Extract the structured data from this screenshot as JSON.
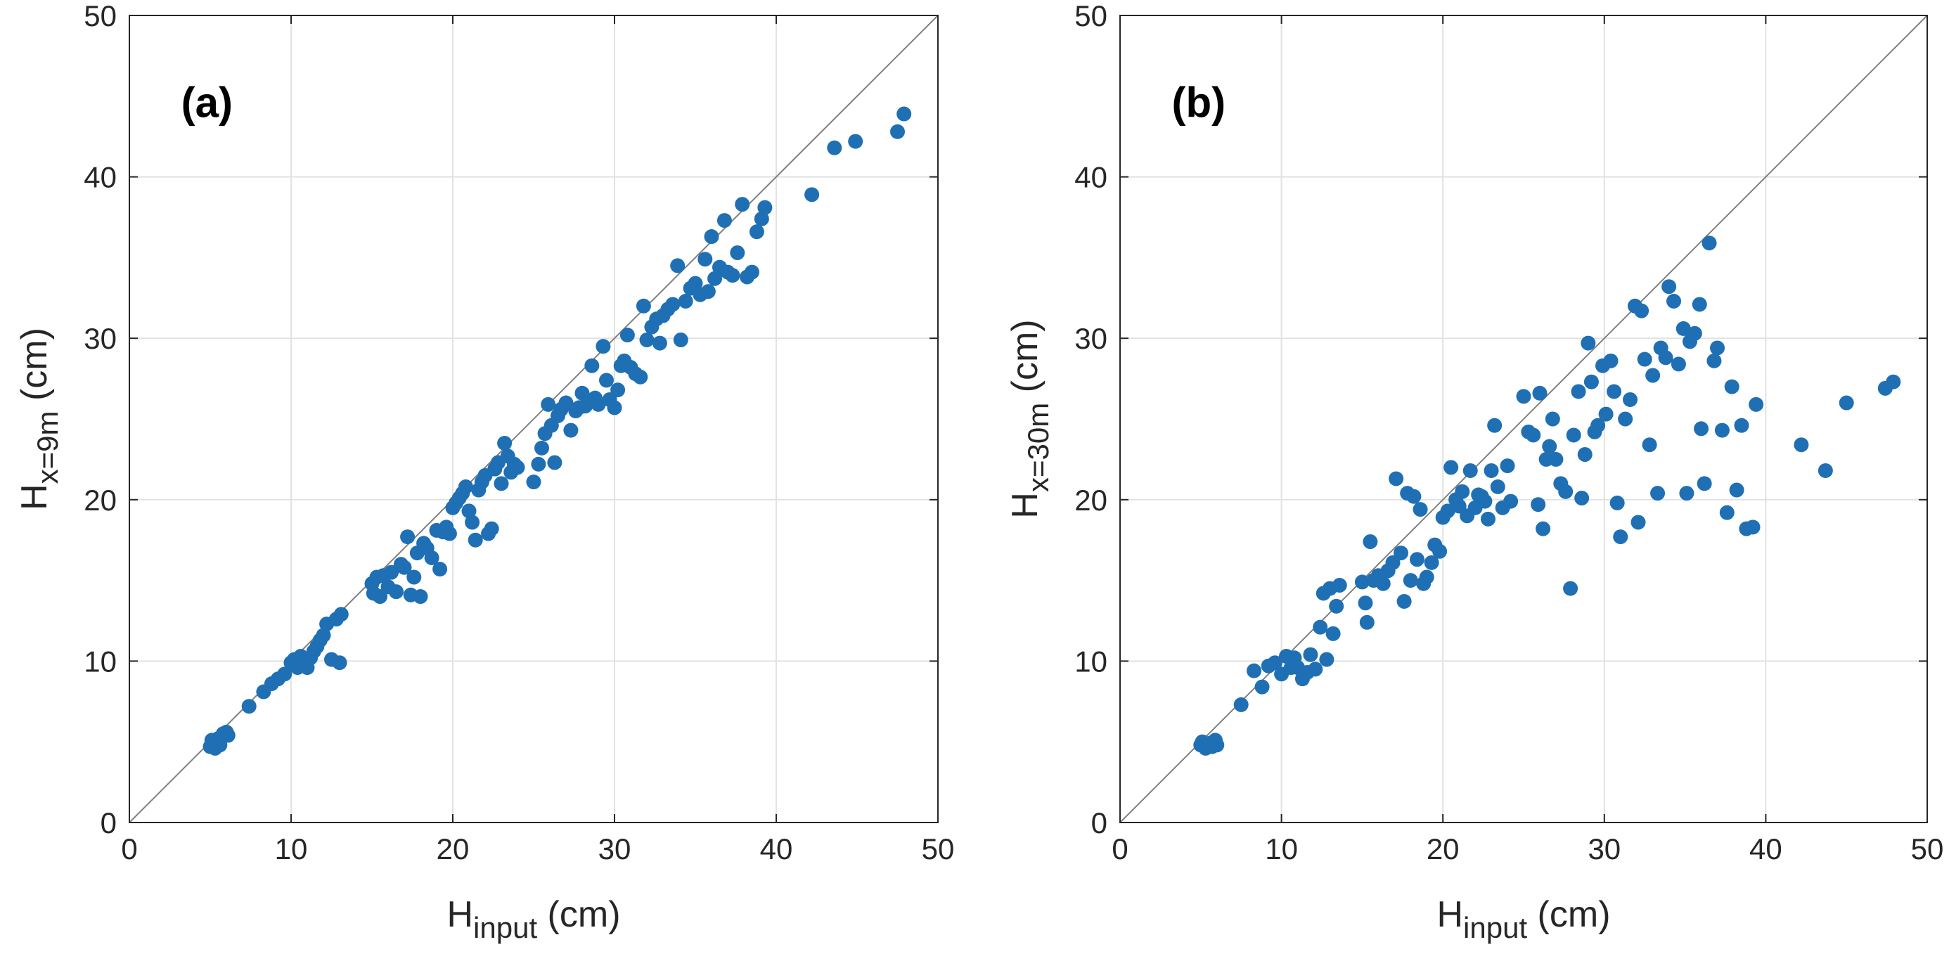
{
  "colors": {
    "marker": "#1f6fb4",
    "grid": "#e2e2e2",
    "axis": "#262626",
    "identity_line": "#808080"
  },
  "chart_data": [
    {
      "type": "scatter",
      "panel_label": "(a)",
      "xlabel": {
        "main": "H",
        "sub": "input",
        "unit": " (cm)"
      },
      "ylabel": {
        "main": "H",
        "sub": "x=9m",
        "unit": " (cm)"
      },
      "xlim": [
        0,
        50
      ],
      "ylim": [
        0,
        50
      ],
      "xticks": [
        "0",
        "10",
        "20",
        "30",
        "40",
        "50"
      ],
      "yticks": [
        "0",
        "10",
        "20",
        "30",
        "40",
        "50"
      ],
      "grid": true,
      "reference_line": "y = x",
      "points": [
        [
          5.0,
          4.7
        ],
        [
          5.1,
          5.1
        ],
        [
          5.2,
          4.9
        ],
        [
          5.3,
          4.6
        ],
        [
          5.4,
          5.0
        ],
        [
          5.5,
          5.2
        ],
        [
          5.6,
          4.8
        ],
        [
          5.7,
          5.3
        ],
        [
          5.8,
          5.5
        ],
        [
          6.0,
          5.6
        ],
        [
          6.1,
          5.4
        ],
        [
          7.4,
          7.2
        ],
        [
          8.3,
          8.1
        ],
        [
          8.8,
          8.6
        ],
        [
          9.2,
          8.9
        ],
        [
          9.6,
          9.2
        ],
        [
          10.0,
          9.9
        ],
        [
          10.2,
          10.1
        ],
        [
          10.4,
          9.6
        ],
        [
          10.6,
          10.3
        ],
        [
          10.8,
          9.8
        ],
        [
          11.0,
          9.6
        ],
        [
          11.2,
          10.2
        ],
        [
          11.4,
          10.6
        ],
        [
          11.6,
          10.9
        ],
        [
          11.8,
          11.3
        ],
        [
          12.0,
          11.6
        ],
        [
          12.2,
          12.3
        ],
        [
          12.5,
          10.1
        ],
        [
          12.8,
          12.6
        ],
        [
          13.0,
          9.9
        ],
        [
          13.1,
          12.9
        ],
        [
          15.0,
          14.8
        ],
        [
          15.1,
          14.2
        ],
        [
          15.3,
          15.2
        ],
        [
          15.5,
          14.0
        ],
        [
          15.7,
          15.3
        ],
        [
          16.0,
          14.6
        ],
        [
          16.2,
          15.5
        ],
        [
          16.5,
          14.3
        ],
        [
          16.8,
          16.0
        ],
        [
          17.0,
          15.8
        ],
        [
          17.2,
          17.7
        ],
        [
          17.4,
          14.1
        ],
        [
          17.6,
          15.2
        ],
        [
          17.8,
          16.7
        ],
        [
          18.0,
          14.0
        ],
        [
          18.2,
          17.3
        ],
        [
          18.4,
          17.0
        ],
        [
          18.7,
          16.4
        ],
        [
          19.0,
          18.1
        ],
        [
          19.2,
          15.7
        ],
        [
          19.4,
          18.0
        ],
        [
          19.6,
          18.3
        ],
        [
          19.8,
          17.9
        ],
        [
          20.0,
          19.5
        ],
        [
          20.2,
          19.8
        ],
        [
          20.4,
          20.1
        ],
        [
          20.6,
          20.4
        ],
        [
          20.8,
          20.8
        ],
        [
          21.0,
          19.3
        ],
        [
          21.2,
          18.6
        ],
        [
          21.4,
          17.5
        ],
        [
          21.6,
          20.6
        ],
        [
          21.8,
          21.1
        ],
        [
          22.0,
          21.5
        ],
        [
          22.2,
          17.9
        ],
        [
          22.4,
          18.2
        ],
        [
          22.6,
          21.9
        ],
        [
          22.8,
          22.3
        ],
        [
          23.0,
          21.0
        ],
        [
          23.2,
          23.5
        ],
        [
          23.4,
          22.7
        ],
        [
          23.6,
          21.7
        ],
        [
          23.8,
          22.2
        ],
        [
          24.0,
          22.0
        ],
        [
          25.0,
          21.1
        ],
        [
          25.3,
          22.2
        ],
        [
          25.5,
          23.2
        ],
        [
          25.7,
          24.1
        ],
        [
          25.9,
          25.9
        ],
        [
          26.1,
          24.6
        ],
        [
          26.3,
          22.3
        ],
        [
          26.5,
          25.2
        ],
        [
          26.7,
          25.6
        ],
        [
          27.0,
          26.0
        ],
        [
          27.3,
          24.3
        ],
        [
          27.6,
          25.5
        ],
        [
          27.8,
          25.7
        ],
        [
          28.0,
          26.6
        ],
        [
          28.2,
          25.8
        ],
        [
          28.4,
          26.1
        ],
        [
          28.6,
          28.3
        ],
        [
          28.8,
          26.3
        ],
        [
          29.0,
          25.9
        ],
        [
          29.3,
          29.5
        ],
        [
          29.5,
          27.4
        ],
        [
          29.7,
          26.2
        ],
        [
          30.0,
          25.7
        ],
        [
          30.2,
          26.8
        ],
        [
          30.4,
          28.3
        ],
        [
          30.6,
          28.6
        ],
        [
          30.8,
          30.2
        ],
        [
          31.0,
          28.2
        ],
        [
          31.3,
          27.8
        ],
        [
          31.6,
          27.6
        ],
        [
          31.8,
          32.0
        ],
        [
          32.0,
          29.9
        ],
        [
          32.3,
          30.7
        ],
        [
          32.6,
          31.2
        ],
        [
          32.8,
          29.7
        ],
        [
          33.0,
          31.4
        ],
        [
          33.3,
          31.8
        ],
        [
          33.6,
          32.1
        ],
        [
          33.9,
          34.5
        ],
        [
          34.1,
          29.9
        ],
        [
          34.4,
          32.3
        ],
        [
          34.7,
          33.1
        ],
        [
          35.0,
          33.4
        ],
        [
          35.3,
          32.7
        ],
        [
          35.6,
          34.9
        ],
        [
          35.8,
          32.9
        ],
        [
          36.0,
          36.3
        ],
        [
          36.2,
          33.7
        ],
        [
          36.5,
          34.4
        ],
        [
          36.8,
          37.3
        ],
        [
          37.0,
          34.1
        ],
        [
          37.3,
          33.9
        ],
        [
          37.6,
          35.3
        ],
        [
          37.9,
          38.3
        ],
        [
          38.2,
          33.8
        ],
        [
          38.5,
          34.1
        ],
        [
          38.8,
          36.6
        ],
        [
          39.1,
          37.4
        ],
        [
          39.3,
          38.1
        ],
        [
          42.2,
          38.9
        ],
        [
          43.6,
          41.8
        ],
        [
          44.9,
          42.2
        ],
        [
          47.5,
          42.8
        ],
        [
          47.9,
          43.9
        ]
      ]
    },
    {
      "type": "scatter",
      "panel_label": "(b)",
      "xlabel": {
        "main": "H",
        "sub": "input",
        "unit": " (cm)"
      },
      "ylabel": {
        "main": "H",
        "sub": "x=30m",
        "unit": " (cm)"
      },
      "xlim": [
        0,
        50
      ],
      "ylim": [
        0,
        50
      ],
      "xticks": [
        "0",
        "10",
        "20",
        "30",
        "40",
        "50"
      ],
      "yticks": [
        "0",
        "10",
        "20",
        "30",
        "40",
        "50"
      ],
      "grid": true,
      "reference_line": "y = x",
      "points": [
        [
          5.0,
          4.8
        ],
        [
          5.1,
          5.0
        ],
        [
          5.3,
          4.6
        ],
        [
          5.5,
          4.9
        ],
        [
          5.7,
          4.7
        ],
        [
          5.9,
          5.1
        ],
        [
          6.0,
          4.8
        ],
        [
          7.5,
          7.3
        ],
        [
          8.3,
          9.4
        ],
        [
          8.8,
          8.4
        ],
        [
          9.2,
          9.7
        ],
        [
          9.6,
          9.9
        ],
        [
          10.0,
          9.2
        ],
        [
          10.3,
          10.3
        ],
        [
          10.6,
          9.6
        ],
        [
          10.8,
          10.2
        ],
        [
          11.0,
          9.6
        ],
        [
          11.3,
          8.9
        ],
        [
          11.6,
          9.3
        ],
        [
          11.8,
          10.4
        ],
        [
          12.1,
          9.5
        ],
        [
          12.4,
          12.1
        ],
        [
          12.6,
          14.2
        ],
        [
          12.8,
          10.1
        ],
        [
          13.0,
          14.5
        ],
        [
          13.2,
          11.7
        ],
        [
          13.4,
          13.4
        ],
        [
          13.6,
          14.7
        ],
        [
          15.0,
          14.9
        ],
        [
          15.2,
          13.6
        ],
        [
          15.3,
          12.4
        ],
        [
          15.5,
          17.4
        ],
        [
          15.7,
          15.0
        ],
        [
          16.0,
          15.3
        ],
        [
          16.3,
          14.8
        ],
        [
          16.6,
          15.6
        ],
        [
          16.9,
          16.1
        ],
        [
          17.1,
          21.3
        ],
        [
          17.4,
          16.7
        ],
        [
          17.6,
          13.7
        ],
        [
          17.8,
          20.4
        ],
        [
          18.0,
          15.0
        ],
        [
          18.2,
          20.2
        ],
        [
          18.4,
          16.3
        ],
        [
          18.6,
          19.4
        ],
        [
          18.8,
          14.8
        ],
        [
          19.0,
          15.2
        ],
        [
          19.3,
          16.1
        ],
        [
          19.5,
          17.2
        ],
        [
          19.8,
          16.8
        ],
        [
          20.0,
          18.9
        ],
        [
          20.3,
          19.3
        ],
        [
          20.5,
          22.0
        ],
        [
          20.8,
          20.0
        ],
        [
          21.0,
          19.6
        ],
        [
          21.2,
          20.5
        ],
        [
          21.5,
          19.0
        ],
        [
          21.7,
          21.8
        ],
        [
          22.0,
          19.5
        ],
        [
          22.2,
          20.3
        ],
        [
          22.4,
          20.2
        ],
        [
          22.6,
          19.9
        ],
        [
          22.8,
          18.8
        ],
        [
          23.0,
          21.8
        ],
        [
          23.2,
          24.6
        ],
        [
          23.4,
          20.8
        ],
        [
          23.7,
          19.5
        ],
        [
          24.0,
          22.1
        ],
        [
          24.2,
          19.9
        ],
        [
          25.0,
          26.4
        ],
        [
          25.3,
          24.2
        ],
        [
          25.6,
          24.0
        ],
        [
          25.9,
          19.7
        ],
        [
          26.0,
          26.6
        ],
        [
          26.2,
          18.2
        ],
        [
          26.4,
          22.5
        ],
        [
          26.6,
          23.3
        ],
        [
          26.8,
          25.0
        ],
        [
          27.0,
          22.5
        ],
        [
          27.3,
          21.0
        ],
        [
          27.6,
          20.5
        ],
        [
          27.9,
          14.5
        ],
        [
          28.1,
          24.0
        ],
        [
          28.4,
          26.7
        ],
        [
          28.6,
          20.1
        ],
        [
          28.8,
          22.8
        ],
        [
          29.0,
          29.7
        ],
        [
          29.2,
          27.3
        ],
        [
          29.4,
          24.2
        ],
        [
          29.6,
          24.6
        ],
        [
          29.9,
          28.3
        ],
        [
          30.1,
          25.3
        ],
        [
          30.4,
          28.6
        ],
        [
          30.6,
          26.7
        ],
        [
          30.8,
          19.8
        ],
        [
          31.0,
          17.7
        ],
        [
          31.3,
          25.0
        ],
        [
          31.6,
          26.2
        ],
        [
          31.9,
          32.0
        ],
        [
          32.1,
          18.6
        ],
        [
          32.3,
          31.7
        ],
        [
          32.5,
          28.7
        ],
        [
          32.8,
          23.4
        ],
        [
          33.0,
          27.7
        ],
        [
          33.3,
          20.4
        ],
        [
          33.5,
          29.4
        ],
        [
          33.8,
          28.8
        ],
        [
          34.0,
          33.2
        ],
        [
          34.3,
          32.3
        ],
        [
          34.6,
          28.4
        ],
        [
          34.9,
          30.6
        ],
        [
          35.1,
          20.4
        ],
        [
          35.3,
          29.8
        ],
        [
          35.6,
          30.3
        ],
        [
          35.9,
          32.1
        ],
        [
          36.0,
          24.4
        ],
        [
          36.2,
          21.0
        ],
        [
          36.5,
          35.9
        ],
        [
          36.8,
          28.6
        ],
        [
          37.0,
          29.4
        ],
        [
          37.3,
          24.3
        ],
        [
          37.6,
          19.2
        ],
        [
          37.9,
          27.0
        ],
        [
          38.2,
          20.6
        ],
        [
          38.5,
          24.6
        ],
        [
          38.8,
          18.2
        ],
        [
          39.2,
          18.3
        ],
        [
          39.4,
          25.9
        ],
        [
          42.2,
          23.4
        ],
        [
          43.7,
          21.8
        ],
        [
          45.0,
          26.0
        ],
        [
          47.4,
          26.9
        ],
        [
          47.9,
          27.3
        ]
      ]
    }
  ]
}
